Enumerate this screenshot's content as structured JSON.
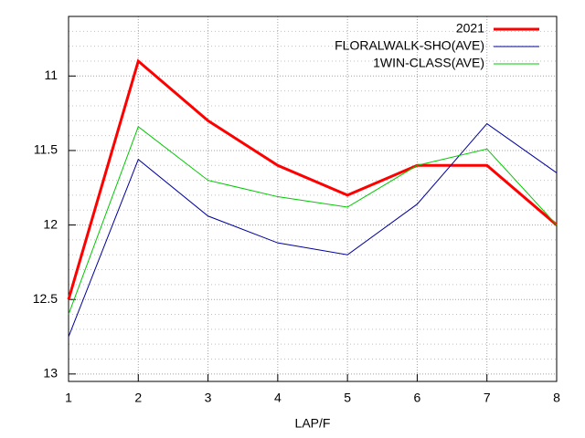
{
  "chart_data": {
    "type": "line",
    "x_label": "LAP/F",
    "x": [
      1,
      2,
      3,
      4,
      5,
      6,
      7,
      8
    ],
    "xlim": [
      1,
      8
    ],
    "xticks": [
      1,
      2,
      3,
      4,
      5,
      6,
      7,
      8
    ],
    "ylim": [
      13.05,
      10.6
    ],
    "yticks": [
      11,
      11.5,
      12,
      12.5,
      13
    ],
    "minor_yticks": [
      10.7,
      10.8,
      10.9,
      11.1,
      11.2,
      11.3,
      11.4,
      11.6,
      11.7,
      11.8,
      11.9,
      12.1,
      12.2,
      12.3,
      12.4,
      12.6,
      12.7,
      12.8,
      12.9
    ],
    "grid": true,
    "legend": "top-right",
    "series": [
      {
        "name": "2021",
        "color": "#ff0000",
        "width": 3,
        "values": [
          12.5,
          10.9,
          11.3,
          11.6,
          11.8,
          11.6,
          11.6,
          12.0
        ]
      },
      {
        "name": "FLORALWALK-SHO(AVE)",
        "color": "#00009c",
        "width": 1,
        "values": [
          12.75,
          11.56,
          11.94,
          12.12,
          12.2,
          11.86,
          11.32,
          11.65
        ]
      },
      {
        "name": "1WIN-CLASS(AVE)",
        "color": "#00c800",
        "width": 1,
        "values": [
          12.6,
          11.34,
          11.7,
          11.81,
          11.88,
          11.6,
          11.49,
          12.0
        ]
      }
    ]
  }
}
